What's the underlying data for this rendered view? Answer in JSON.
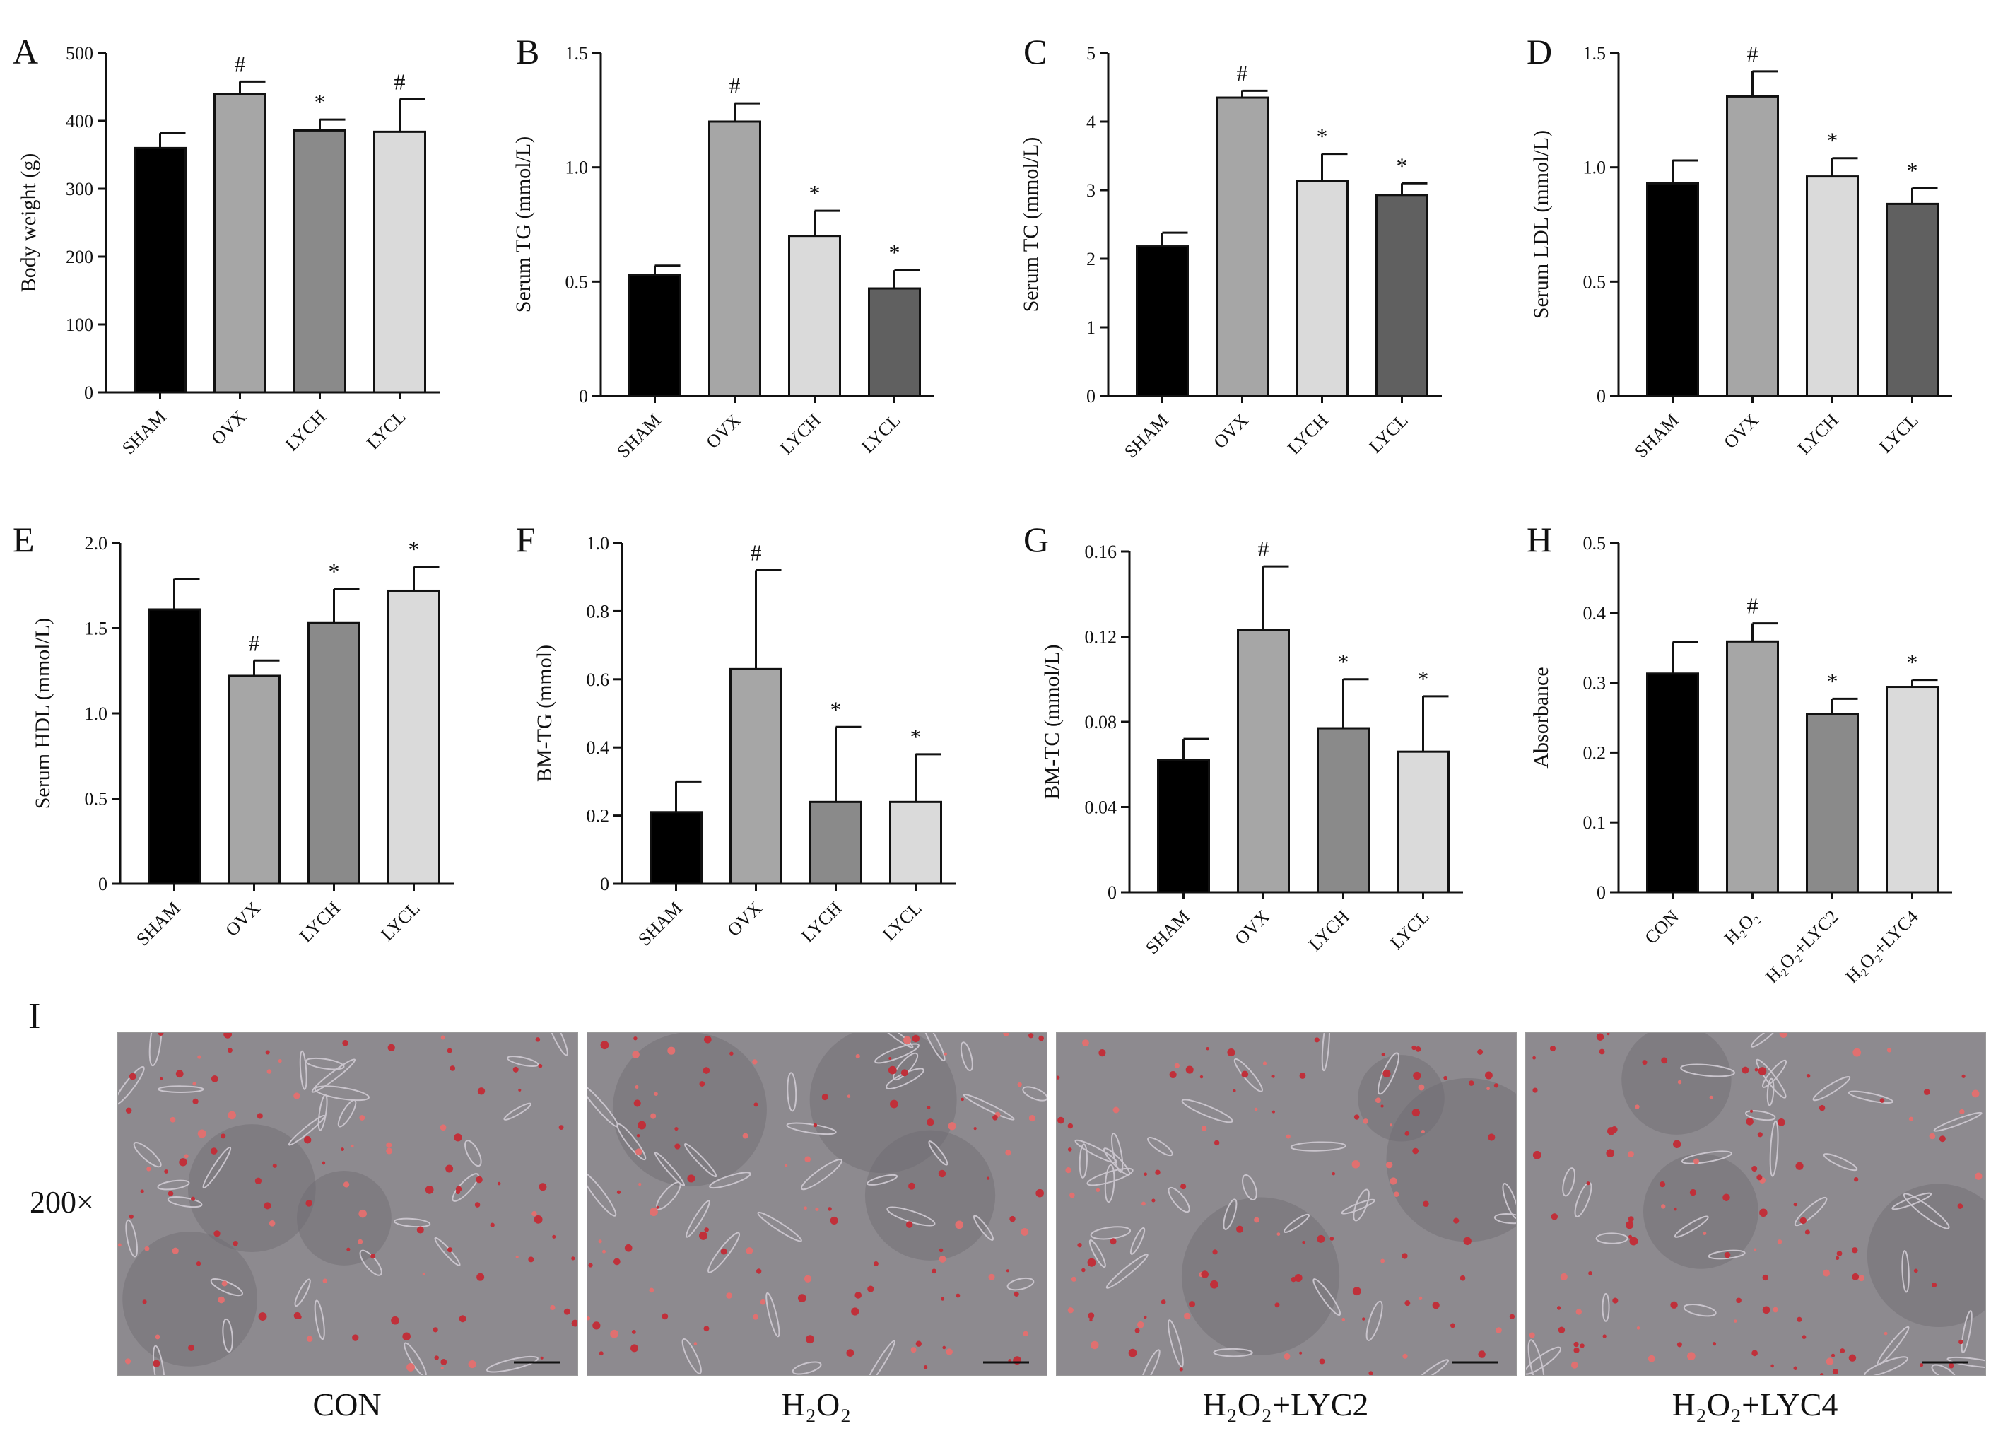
{
  "charts": [
    {
      "letter": "A",
      "ylabel": "Body weight (g)",
      "categories": [
        "SHAM",
        "OVX",
        "LYCH",
        "LYCL"
      ],
      "values": [
        360,
        440,
        386,
        384
      ],
      "errors": [
        22,
        18,
        16,
        48
      ],
      "marks": [
        "",
        "#",
        "*",
        "#"
      ],
      "ylim": [
        0,
        500
      ],
      "yticks": [
        "0",
        "100",
        "200",
        "300",
        "400",
        "500"
      ],
      "colors": [
        "#000000",
        "#a6a6a6",
        "#8a8a8a",
        "#dadada"
      ]
    },
    {
      "letter": "B",
      "ylabel": "Serum TG (mmol/L)",
      "categories": [
        "SHAM",
        "OVX",
        "LYCH",
        "LYCL"
      ],
      "values": [
        0.53,
        1.2,
        0.7,
        0.47
      ],
      "errors": [
        0.04,
        0.08,
        0.11,
        0.08
      ],
      "marks": [
        "",
        "#",
        "*",
        "*"
      ],
      "ylim": [
        0,
        1.5
      ],
      "yticks": [
        "0",
        "0.5",
        "1.0",
        "1.5"
      ],
      "colors": [
        "#000000",
        "#a6a6a6",
        "#dadada",
        "#606060"
      ]
    },
    {
      "letter": "C",
      "ylabel": "Serum TC (mmol/L)",
      "categories": [
        "SHAM",
        "OVX",
        "LYCH",
        "LYCL"
      ],
      "values": [
        2.18,
        4.35,
        3.13,
        2.93
      ],
      "errors": [
        0.2,
        0.1,
        0.4,
        0.17
      ],
      "marks": [
        "",
        "#",
        "*",
        "*"
      ],
      "ylim": [
        0,
        5
      ],
      "yticks": [
        "0",
        "1",
        "2",
        "3",
        "4",
        "5"
      ],
      "colors": [
        "#000000",
        "#a6a6a6",
        "#dadada",
        "#606060"
      ]
    },
    {
      "letter": "D",
      "ylabel": "Serum LDL (mmol/L)",
      "categories": [
        "SHAM",
        "OVX",
        "LYCH",
        "LYCL"
      ],
      "values": [
        0.93,
        1.31,
        0.96,
        0.84
      ],
      "errors": [
        0.1,
        0.11,
        0.08,
        0.07
      ],
      "marks": [
        "",
        "#",
        "*",
        "*"
      ],
      "ylim": [
        0,
        1.5
      ],
      "yticks": [
        "0",
        "0.5",
        "1.0",
        "1.5"
      ],
      "colors": [
        "#000000",
        "#a6a6a6",
        "#dadada",
        "#606060"
      ]
    },
    {
      "letter": "E",
      "ylabel": "Serum HDL (mmol/L)",
      "categories": [
        "SHAM",
        "OVX",
        "LYCH",
        "LYCL"
      ],
      "values": [
        1.61,
        1.22,
        1.53,
        1.72
      ],
      "errors": [
        0.18,
        0.09,
        0.2,
        0.14
      ],
      "marks": [
        "",
        "#",
        "*",
        "*"
      ],
      "ylim": [
        0,
        2.0
      ],
      "yticks": [
        "0",
        "0.5",
        "1.0",
        "1.5",
        "2.0"
      ],
      "colors": [
        "#000000",
        "#a6a6a6",
        "#8a8a8a",
        "#dadada"
      ]
    },
    {
      "letter": "F",
      "ylabel": "BM-TG (mmol)",
      "categories": [
        "SHAM",
        "OVX",
        "LYCH",
        "LYCL"
      ],
      "values": [
        0.21,
        0.63,
        0.24,
        0.24
      ],
      "errors": [
        0.09,
        0.29,
        0.22,
        0.14
      ],
      "marks": [
        "",
        "#",
        "*",
        "*"
      ],
      "ylim": [
        0,
        1.0
      ],
      "yticks": [
        "0",
        "0.2",
        "0.4",
        "0.6",
        "0.8",
        "1.0"
      ],
      "colors": [
        "#000000",
        "#a6a6a6",
        "#8a8a8a",
        "#dadada"
      ]
    },
    {
      "letter": "G",
      "ylabel": "BM-TC (mmol/L)",
      "categories": [
        "SHAM",
        "OVX",
        "LYCH",
        "LYCL"
      ],
      "values": [
        0.062,
        0.123,
        0.077,
        0.066
      ],
      "errors": [
        0.01,
        0.03,
        0.023,
        0.026
      ],
      "marks": [
        "",
        "#",
        "*",
        "*"
      ],
      "ylim": [
        0,
        0.16
      ],
      "yticks": [
        "0",
        "0.04",
        "0.08",
        "0.12",
        "0.16"
      ],
      "colors": [
        "#000000",
        "#a6a6a6",
        "#8a8a8a",
        "#dadada"
      ]
    },
    {
      "letter": "H",
      "ylabel": "Absorbance",
      "categories": [
        "CON",
        "H₂O₂",
        "H₂O₂+LYC2",
        "H₂O₂+LYC4"
      ],
      "values": [
        0.313,
        0.359,
        0.255,
        0.294
      ],
      "errors": [
        0.045,
        0.026,
        0.022,
        0.01
      ],
      "marks": [
        "",
        "#",
        "*",
        "*"
      ],
      "ylim": [
        0,
        0.5
      ],
      "yticks": [
        "0",
        "0.1",
        "0.2",
        "0.3",
        "0.4",
        "0.5"
      ],
      "colors": [
        "#000000",
        "#a6a6a6",
        "#8a8a8a",
        "#dadada"
      ]
    }
  ],
  "chart_data": [
    {
      "type": "bar",
      "ylabel": "Body weight (g)",
      "categories": [
        "SHAM",
        "OVX",
        "LYCH",
        "LYCL"
      ],
      "values": [
        360,
        440,
        386,
        384
      ],
      "ylim": [
        0,
        500
      ]
    },
    {
      "type": "bar",
      "ylabel": "Serum TG (mmol/L)",
      "categories": [
        "SHAM",
        "OVX",
        "LYCH",
        "LYCL"
      ],
      "values": [
        0.53,
        1.2,
        0.7,
        0.47
      ],
      "ylim": [
        0,
        1.5
      ]
    },
    {
      "type": "bar",
      "ylabel": "Serum TC (mmol/L)",
      "categories": [
        "SHAM",
        "OVX",
        "LYCH",
        "LYCL"
      ],
      "values": [
        2.18,
        4.35,
        3.13,
        2.93
      ],
      "ylim": [
        0,
        5
      ]
    },
    {
      "type": "bar",
      "ylabel": "Serum LDL (mmol/L)",
      "categories": [
        "SHAM",
        "OVX",
        "LYCH",
        "LYCL"
      ],
      "values": [
        0.93,
        1.31,
        0.96,
        0.84
      ],
      "ylim": [
        0,
        1.5
      ]
    },
    {
      "type": "bar",
      "ylabel": "Serum HDL (mmol/L)",
      "categories": [
        "SHAM",
        "OVX",
        "LYCH",
        "LYCL"
      ],
      "values": [
        1.61,
        1.22,
        1.53,
        1.72
      ],
      "ylim": [
        0,
        2.0
      ]
    },
    {
      "type": "bar",
      "ylabel": "BM-TG (mmol)",
      "categories": [
        "SHAM",
        "OVX",
        "LYCH",
        "LYCL"
      ],
      "values": [
        0.21,
        0.63,
        0.24,
        0.24
      ],
      "ylim": [
        0,
        1.0
      ]
    },
    {
      "type": "bar",
      "ylabel": "BM-TC (mmol/L)",
      "categories": [
        "SHAM",
        "OVX",
        "LYCH",
        "LYCL"
      ],
      "values": [
        0.062,
        0.123,
        0.077,
        0.066
      ],
      "ylim": [
        0,
        0.16
      ]
    },
    {
      "type": "bar",
      "ylabel": "Absorbance",
      "categories": [
        "CON",
        "H₂O₂",
        "H₂O₂+LYC2",
        "H₂O₂+LYC4"
      ],
      "values": [
        0.313,
        0.359,
        0.255,
        0.294
      ],
      "ylim": [
        0,
        0.5
      ]
    }
  ],
  "micrographs": {
    "panel_letter": "I",
    "magnification": "200×",
    "captions": [
      "CON",
      "H₂O₂",
      "H₂O₂+LYC2",
      "H₂O₂+LYC4"
    ]
  }
}
